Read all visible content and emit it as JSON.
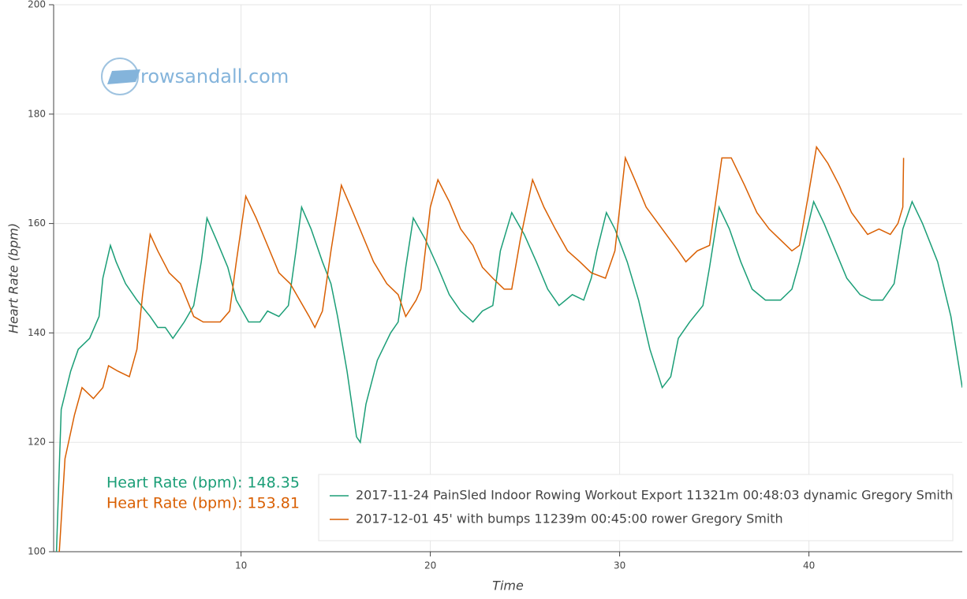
{
  "chart_data": {
    "type": "line",
    "xlabel": "Time",
    "ylabel": "Heart Rate (bpm)",
    "watermark": "rowsandall.com",
    "annotations": [
      "Heart Rate (bpm): 148.35",
      "Heart Rate (bpm): 153.81"
    ],
    "xlim": [
      0.1,
      48.1
    ],
    "ylim": [
      100,
      200
    ],
    "xticks": [
      10,
      20,
      30,
      40
    ],
    "yticks": [
      100,
      120,
      140,
      160,
      180,
      200
    ],
    "grid": true,
    "legend": "bottom_right",
    "series": [
      {
        "name": "2017-11-24 PainSled Indoor Rowing Workout Export 11321m 00:48:03 dynamic Gregory Smith",
        "color": "#1b9e77",
        "x": [
          0.25,
          0.5,
          1.0,
          1.4,
          2.0,
          2.5,
          2.7,
          3.1,
          3.4,
          3.9,
          4.5,
          5.2,
          5.6,
          6.0,
          6.4,
          7.0,
          7.5,
          7.9,
          8.2,
          8.7,
          9.3,
          9.75,
          10.4,
          11.0,
          11.4,
          12.0,
          12.5,
          12.9,
          13.2,
          13.7,
          14.3,
          14.75,
          15.1,
          15.6,
          16.1,
          16.3,
          16.6,
          17.2,
          17.9,
          18.3,
          18.7,
          19.1,
          19.75,
          20.4,
          21.0,
          21.6,
          22.25,
          22.75,
          23.3,
          23.7,
          24.3,
          24.96,
          25.6,
          26.2,
          26.8,
          27.5,
          28.1,
          28.5,
          28.8,
          29.3,
          29.75,
          30.4,
          31.0,
          31.6,
          32.25,
          32.7,
          33.1,
          33.7,
          34.4,
          34.75,
          35.25,
          35.8,
          36.4,
          37.0,
          37.7,
          38.5,
          39.1,
          39.5,
          40.25,
          40.8,
          41.4,
          42.0,
          42.7,
          43.3,
          43.9,
          44.5,
          44.96,
          45.45,
          46.0,
          46.8,
          47.5,
          48.1
        ],
        "values": [
          100,
          126,
          133,
          137,
          139,
          143,
          150,
          156,
          153,
          149,
          146,
          143,
          141,
          141,
          139,
          142,
          145,
          153,
          161,
          157,
          152,
          146,
          142,
          142,
          144,
          143,
          145,
          155,
          163,
          159,
          153,
          149,
          143,
          133,
          121,
          120,
          127,
          135,
          140,
          142,
          152,
          161,
          157,
          152,
          147,
          144,
          142,
          144,
          145,
          155,
          162,
          158,
          153,
          148,
          145,
          147,
          146,
          150,
          155,
          162,
          159,
          153,
          146,
          137,
          130,
          132,
          139,
          142,
          145,
          152,
          163,
          159,
          153,
          148,
          146,
          146,
          148,
          153,
          164,
          160,
          155,
          150,
          147,
          146,
          146,
          149,
          159,
          164,
          160,
          153,
          143,
          130
        ]
      },
      {
        "name": "2017-12-01 45' with bumps 11239m 00:45:00 rower Gregory Smith",
        "color": "#d95f02",
        "x": [
          0.4,
          0.7,
          1.2,
          1.6,
          2.2,
          2.7,
          3.0,
          3.5,
          4.1,
          4.5,
          4.8,
          5.2,
          5.6,
          6.2,
          6.8,
          7.5,
          8.0,
          8.4,
          8.9,
          9.4,
          9.75,
          10.25,
          10.8,
          11.4,
          12.0,
          12.6,
          13.1,
          13.6,
          13.9,
          14.3,
          14.75,
          15.3,
          15.8,
          16.4,
          17.0,
          17.7,
          18.3,
          18.7,
          19.25,
          19.5,
          20.0,
          20.4,
          21.0,
          21.6,
          22.25,
          22.75,
          23.3,
          23.9,
          24.3,
          24.75,
          25.4,
          26.0,
          26.6,
          27.25,
          27.9,
          28.5,
          29.25,
          29.75,
          30.3,
          30.8,
          31.4,
          32.25,
          33.1,
          33.5,
          34.1,
          34.75,
          35.4,
          35.9,
          36.6,
          37.25,
          37.9,
          38.5,
          39.1,
          39.5,
          39.96,
          40.4,
          41.0,
          41.6,
          42.25,
          43.1,
          43.7,
          44.3,
          44.7,
          44.96,
          45.0
        ],
        "values": [
          100,
          117,
          125,
          130,
          128,
          130,
          134,
          133,
          132,
          137,
          147,
          158,
          155,
          151,
          149,
          143,
          142,
          142,
          142,
          144,
          153,
          165,
          161,
          156,
          151,
          149,
          146,
          143,
          141,
          144,
          155,
          167,
          163,
          158,
          153,
          149,
          147,
          143,
          146,
          148,
          163,
          168,
          164,
          159,
          156,
          152,
          150,
          148,
          148,
          157,
          168,
          163,
          159,
          155,
          153,
          151,
          150,
          155,
          172,
          168,
          163,
          159,
          155,
          153,
          155,
          156,
          172,
          172,
          167,
          162,
          159,
          157,
          155,
          156,
          165,
          174,
          171,
          167,
          162,
          158,
          159,
          158,
          160,
          163,
          172
        ]
      }
    ]
  }
}
